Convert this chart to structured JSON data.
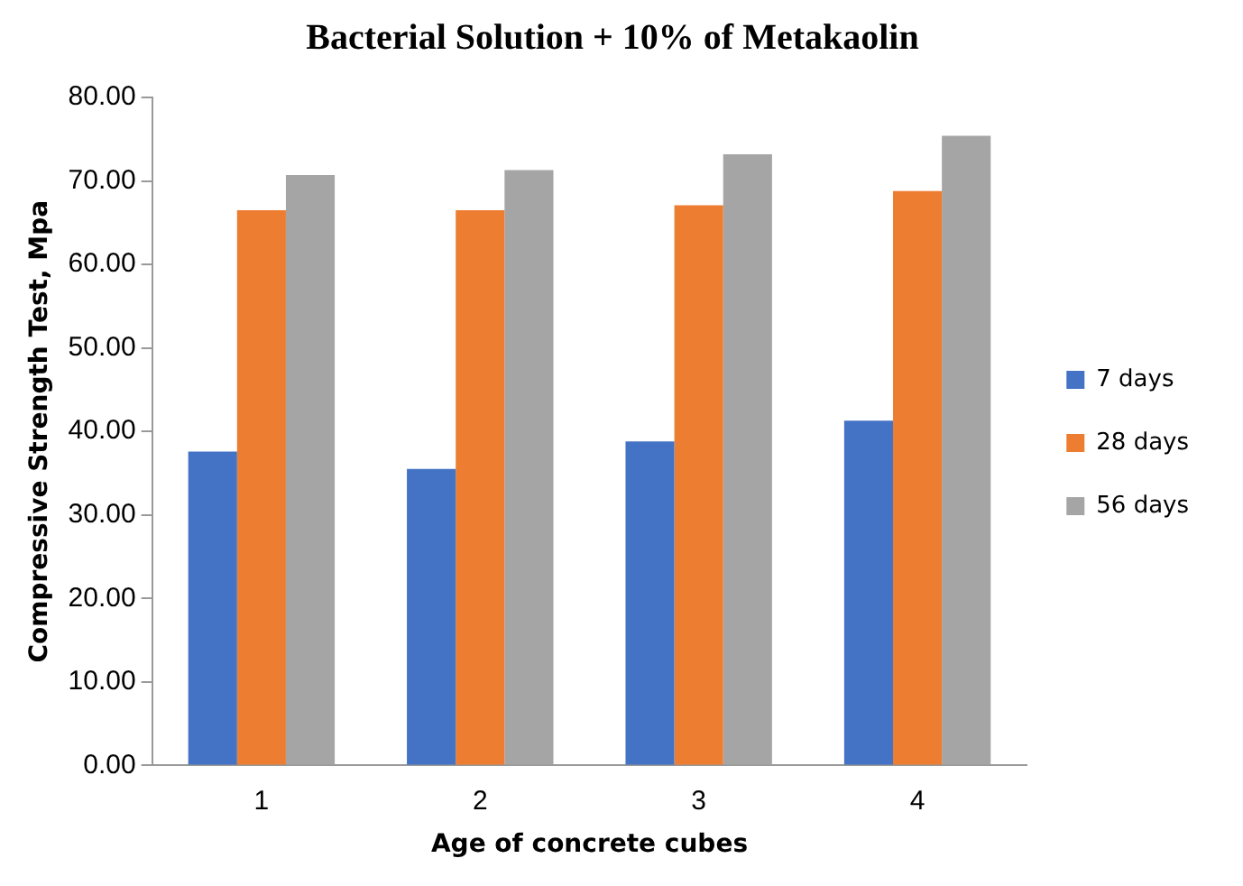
{
  "chart_data": {
    "type": "bar",
    "title": "Bacterial Solution + 10% of Metakaolin",
    "xlabel": "Age of concrete cubes",
    "ylabel": "Compressive Strength Test, Mpa",
    "categories": [
      "1",
      "2",
      "3",
      "4"
    ],
    "series": [
      {
        "name": "7 days",
        "color": "#4472c4",
        "values": [
          37.6,
          35.5,
          38.8,
          41.3
        ]
      },
      {
        "name": "28 days",
        "color": "#ed7d31",
        "values": [
          66.5,
          66.5,
          67.1,
          68.8
        ]
      },
      {
        "name": "56 days",
        "color": "#a5a5a5",
        "values": [
          70.7,
          71.3,
          73.2,
          75.4
        ]
      }
    ],
    "ylim": [
      0,
      80
    ],
    "yticks": [
      {
        "value": 0,
        "label": "0.00"
      },
      {
        "value": 10,
        "label": "10.00"
      },
      {
        "value": 20,
        "label": "20.00"
      },
      {
        "value": 30,
        "label": "30.00"
      },
      {
        "value": 40,
        "label": "40.00"
      },
      {
        "value": 50,
        "label": "50.00"
      },
      {
        "value": 60,
        "label": "60.00"
      },
      {
        "value": 70,
        "label": "70.00"
      },
      {
        "value": 80,
        "label": "80.00"
      }
    ],
    "grid": false,
    "legend": "right"
  }
}
